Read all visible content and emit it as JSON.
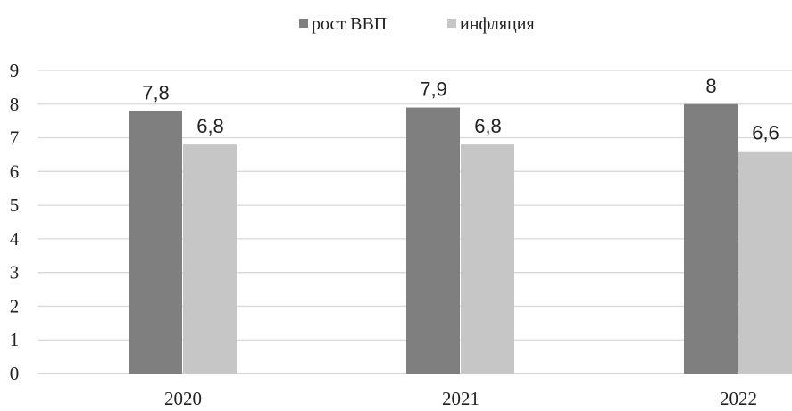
{
  "chart_data": {
    "type": "bar",
    "categories": [
      "2020",
      "2021",
      "2022"
    ],
    "series": [
      {
        "name": "рост ВВП",
        "values": [
          7.8,
          7.9,
          8
        ],
        "labels": [
          "7,8",
          "7,9",
          "8"
        ],
        "color": "#7f7f7f"
      },
      {
        "name": "инфляция",
        "values": [
          6.8,
          6.8,
          6.6
        ],
        "labels": [
          "6,8",
          "6,8",
          "6,6"
        ],
        "color": "#c6c6c6"
      }
    ],
    "y_ticks": [
      "0",
      "1",
      "2",
      "3",
      "4",
      "5",
      "6",
      "7",
      "8",
      "9"
    ],
    "ylim": [
      0,
      9
    ],
    "grid": true,
    "legend_position": "top-center",
    "gridline_color": "#d9d9d9",
    "axis_color": "#bfbfbf"
  }
}
